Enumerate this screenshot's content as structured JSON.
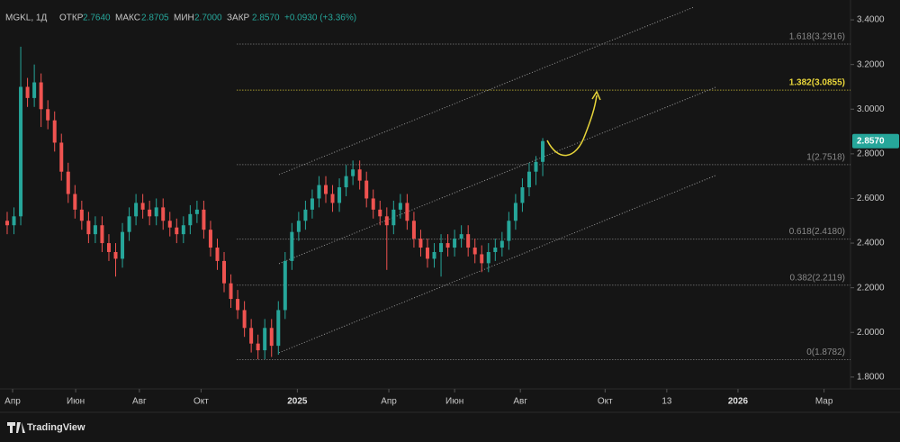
{
  "header": {
    "symbol": "MGKL, 1Д",
    "open_label": "ОТКР",
    "open": "2.7640",
    "high_label": "МАКС",
    "high": "2.8705",
    "low_label": "МИН",
    "low": "2.7000",
    "close_label": "ЗАКР",
    "close": "2.8570",
    "change": "+0.0930 (+3.36%)"
  },
  "footer": {
    "brand": "TradingView"
  },
  "chart_data": {
    "type": "candlestick",
    "up_color": "#26a69a",
    "down_color": "#ef5350",
    "xlim": [
      -1.06,
      124.4
    ],
    "ylim": [
      1.747,
      3.489
    ],
    "xticks": [
      {
        "value": 0.8,
        "label": "Апр"
      },
      {
        "value": 10.1,
        "label": "Июн"
      },
      {
        "value": 19.5,
        "label": "Авг"
      },
      {
        "value": 28.6,
        "label": "Окт"
      },
      {
        "value": 42.8,
        "label": "2025"
      },
      {
        "value": 56.3,
        "label": "Апр"
      },
      {
        "value": 66,
        "label": "Июн"
      },
      {
        "value": 75.7,
        "label": "Авг"
      },
      {
        "value": 88.2,
        "label": "Окт"
      },
      {
        "value": 97.3,
        "label": "13"
      },
      {
        "value": 107.8,
        "label": "2026"
      },
      {
        "value": 120.5,
        "label": "Мар"
      }
    ],
    "yticks": [
      {
        "value": 1.8,
        "label": "1.8000"
      },
      {
        "value": 2.0,
        "label": "2.0000"
      },
      {
        "value": 2.2,
        "label": "2.2000"
      },
      {
        "value": 2.4,
        "label": "2.4000"
      },
      {
        "value": 2.6,
        "label": "2.6000"
      },
      {
        "value": 2.8,
        "label": "2.8000"
      },
      {
        "value": 3.0,
        "label": "3.0000"
      },
      {
        "value": 3.2,
        "label": "3.2000"
      },
      {
        "value": 3.4,
        "label": "3.4000"
      }
    ],
    "last_price": {
      "value": 2.857,
      "label": "2.8570",
      "color": "#26a69a"
    },
    "open": [
      2.5,
      2.48,
      2.52,
      3.1,
      3.05,
      3.12,
      3.0,
      2.95,
      2.85,
      2.72,
      2.62,
      2.55,
      2.5,
      2.44,
      2.48,
      2.4,
      2.36,
      2.33,
      2.45,
      2.52,
      2.58,
      2.55,
      2.52,
      2.56,
      2.5,
      2.47,
      2.44,
      2.48,
      2.53,
      2.55,
      2.46,
      2.38,
      2.32,
      2.22,
      2.15,
      2.1,
      2.02,
      1.95,
      1.92,
      2.02,
      1.94,
      2.1,
      2.32,
      2.45,
      2.5,
      2.55,
      2.6,
      2.66,
      2.62,
      2.58,
      2.65,
      2.7,
      2.73,
      2.68,
      2.6,
      2.55,
      2.52,
      2.48,
      2.55,
      2.58,
      2.5,
      2.42,
      2.38,
      2.33,
      2.36,
      2.4,
      2.38,
      2.42,
      2.44,
      2.38,
      2.35,
      2.31,
      2.36,
      2.38,
      2.41,
      2.5,
      2.58,
      2.65,
      2.72,
      2.764
    ],
    "high": [
      2.54,
      2.56,
      3.28,
      3.14,
      3.2,
      3.16,
      3.04,
      2.99,
      2.89,
      2.76,
      2.66,
      2.59,
      2.54,
      2.52,
      2.52,
      2.44,
      2.4,
      2.49,
      2.56,
      2.62,
      2.62,
      2.59,
      2.6,
      2.6,
      2.54,
      2.51,
      2.52,
      2.57,
      2.59,
      2.59,
      2.5,
      2.42,
      2.36,
      2.26,
      2.19,
      2.14,
      2.06,
      1.99,
      2.06,
      2.06,
      2.14,
      2.36,
      2.49,
      2.54,
      2.59,
      2.64,
      2.7,
      2.7,
      2.66,
      2.69,
      2.75,
      2.77,
      2.77,
      2.72,
      2.64,
      2.59,
      2.56,
      2.59,
      2.62,
      2.62,
      2.54,
      2.46,
      2.42,
      2.4,
      2.44,
      2.44,
      2.46,
      2.48,
      2.48,
      2.42,
      2.39,
      2.4,
      2.42,
      2.45,
      2.54,
      2.62,
      2.69,
      2.76,
      2.79,
      2.8705
    ],
    "low": [
      2.44,
      2.44,
      2.48,
      3.01,
      3.01,
      2.92,
      2.91,
      2.81,
      2.68,
      2.58,
      2.51,
      2.46,
      2.4,
      2.4,
      2.36,
      2.32,
      2.25,
      2.29,
      2.41,
      2.48,
      2.51,
      2.48,
      2.48,
      2.46,
      2.43,
      2.4,
      2.4,
      2.44,
      2.49,
      2.42,
      2.34,
      2.28,
      2.18,
      2.11,
      2.06,
      1.98,
      1.91,
      1.88,
      1.88,
      1.89,
      1.9,
      2.06,
      2.28,
      2.41,
      2.46,
      2.51,
      2.56,
      2.58,
      2.54,
      2.54,
      2.61,
      2.66,
      2.64,
      2.56,
      2.51,
      2.48,
      2.28,
      2.44,
      2.51,
      2.46,
      2.38,
      2.34,
      2.29,
      2.29,
      2.25,
      2.34,
      2.34,
      2.38,
      2.34,
      2.31,
      2.27,
      2.27,
      2.32,
      2.34,
      2.37,
      2.46,
      2.54,
      2.61,
      2.66,
      2.7
    ],
    "close": [
      2.48,
      2.52,
      3.1,
      3.05,
      3.12,
      3.0,
      2.95,
      2.85,
      2.72,
      2.62,
      2.55,
      2.5,
      2.44,
      2.48,
      2.4,
      2.36,
      2.33,
      2.45,
      2.52,
      2.58,
      2.55,
      2.52,
      2.56,
      2.5,
      2.47,
      2.44,
      2.48,
      2.53,
      2.55,
      2.46,
      2.38,
      2.32,
      2.22,
      2.15,
      2.1,
      2.02,
      1.95,
      1.92,
      2.02,
      1.94,
      2.1,
      2.32,
      2.45,
      2.5,
      2.55,
      2.6,
      2.66,
      2.62,
      2.58,
      2.65,
      2.7,
      2.73,
      2.68,
      2.6,
      2.55,
      2.52,
      2.48,
      2.55,
      2.58,
      2.5,
      2.42,
      2.38,
      2.33,
      2.36,
      2.4,
      2.38,
      2.42,
      2.44,
      2.38,
      2.35,
      2.31,
      2.36,
      2.38,
      2.41,
      2.5,
      2.58,
      2.65,
      2.72,
      2.764,
      2.857
    ],
    "fibonacci": {
      "x_start": 33.9,
      "levels": [
        {
          "value": 1.8782,
          "label": "0(1.8782)",
          "color": "#8a8a8a"
        },
        {
          "value": 2.2119,
          "label": "0.382(2.2119)",
          "color": "#8a8a8a"
        },
        {
          "value": 2.418,
          "label": "0.618(2.4180)",
          "color": "#8a8a8a"
        },
        {
          "value": 2.7518,
          "label": "1(2.7518)",
          "color": "#8a8a8a"
        },
        {
          "value": 3.0855,
          "label": "1.382(3.0855)",
          "color": "#e8d53a"
        },
        {
          "value": 3.2916,
          "label": "1.618(3.2916)",
          "color": "#8a8a8a"
        }
      ]
    },
    "channel": [
      {
        "x": [
          40.1,
          104.5
        ],
        "y": [
          1.909,
          2.703
        ]
      },
      {
        "x": [
          40.1,
          104.5
        ],
        "y": [
          2.308,
          3.098
        ]
      },
      {
        "x": [
          40.1,
          101.2
        ],
        "y": [
          2.707,
          3.456
        ]
      }
    ]
  }
}
